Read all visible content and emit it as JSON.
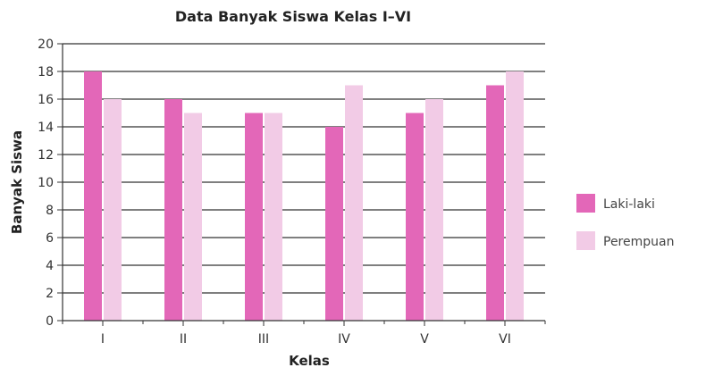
{
  "chart_data": {
    "type": "bar",
    "title": "Data Banyak Siswa Kelas I–VI",
    "xlabel": "Kelas",
    "ylabel": "Banyak Siswa",
    "categories": [
      "I",
      "II",
      "III",
      "IV",
      "V",
      "VI"
    ],
    "series": [
      {
        "name": "Laki-laki",
        "color": "#e367b8",
        "values": [
          18,
          16,
          15,
          14,
          15,
          17
        ]
      },
      {
        "name": "Perempuan",
        "color": "#f2cbe6",
        "values": [
          16,
          15,
          15,
          17,
          16,
          18
        ]
      }
    ],
    "ylim": [
      0,
      20
    ],
    "yticks": [
      "0",
      "2",
      "4",
      "6",
      "8",
      "10",
      "12",
      "14",
      "16",
      "18",
      "20"
    ],
    "grid": true,
    "legend": "right"
  }
}
